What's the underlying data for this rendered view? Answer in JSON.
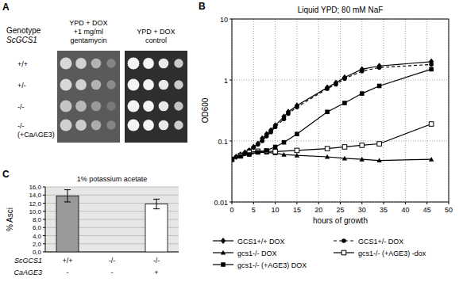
{
  "spot_assay": {
    "panel": "A",
    "genotype_label": "Genotype",
    "gene": "ScGCS1",
    "rows": [
      [
        "+/+"
      ],
      [
        "+/-"
      ],
      [
        "-/-"
      ],
      [
        "-/-",
        "(+CaAGE3)"
      ]
    ],
    "plates": [
      [
        "YPD + DOX",
        "+1 mg/ml",
        "gentamycin"
      ],
      [
        "YPD + DOX",
        "control"
      ]
    ]
  },
  "chart_data": [
    {
      "type": "line",
      "panel": "B",
      "title": "Liquid YPD; 80 mM NaF",
      "x_label": "hours of growth",
      "y_label": "OD600",
      "log": "y",
      "grid": true,
      "legend": "bottom",
      "xlim": [
        0,
        50
      ],
      "xticks": [
        0,
        5,
        10,
        15,
        20,
        25,
        30,
        35,
        40,
        45,
        50
      ],
      "ylim": [
        0.01,
        10
      ],
      "yticks": [
        0.01,
        0.1,
        1,
        10
      ],
      "series": [
        {
          "name": "GCS1+/+ DOX",
          "color": "#000000",
          "marker": "diamond",
          "line_style": "solid",
          "x": [
            0,
            1,
            2,
            3,
            4,
            5,
            6,
            7,
            8,
            9,
            10,
            12,
            13,
            15,
            22,
            24,
            26,
            30,
            34,
            46
          ],
          "values": [
            0.05,
            0.055,
            0.06,
            0.065,
            0.07,
            0.08,
            0.09,
            0.11,
            0.13,
            0.15,
            0.18,
            0.25,
            0.3,
            0.38,
            0.75,
            0.9,
            1.1,
            1.5,
            1.7,
            2.0
          ]
        },
        {
          "name": "GCS1+/- DOX",
          "color": "#000000",
          "marker": "circle",
          "line_style": "dashed",
          "x": [
            0,
            1,
            2,
            3,
            4,
            5,
            6,
            7,
            8,
            9,
            10,
            12,
            13,
            15,
            22,
            24,
            26,
            30,
            34,
            46
          ],
          "values": [
            0.05,
            0.055,
            0.058,
            0.063,
            0.07,
            0.078,
            0.088,
            0.1,
            0.12,
            0.14,
            0.17,
            0.23,
            0.28,
            0.36,
            0.72,
            0.85,
            1.05,
            1.4,
            1.6,
            1.8
          ]
        },
        {
          "name": "gcs1-/- DOX",
          "color": "#000000",
          "marker": "triangle",
          "line_style": "solid",
          "x": [
            0,
            2,
            4,
            6,
            8,
            10,
            12,
            15,
            22,
            26,
            30,
            34,
            46
          ],
          "values": [
            0.05,
            0.06,
            0.062,
            0.065,
            0.065,
            0.063,
            0.06,
            0.058,
            0.055,
            0.052,
            0.05,
            0.048,
            0.05
          ]
        },
        {
          "name": "gcs1-/- (+AGE3) -dox",
          "color": "#000000",
          "marker": "open_square",
          "line_style": "solid",
          "x": [
            0,
            2,
            4,
            6,
            8,
            10,
            15,
            22,
            26,
            30,
            34,
            46
          ],
          "values": [
            0.05,
            0.058,
            0.065,
            0.068,
            0.068,
            0.067,
            0.07,
            0.075,
            0.08,
            0.085,
            0.09,
            0.19
          ]
        },
        {
          "name": "gcs1-/- (+AGE3) DOX",
          "color": "#000000",
          "marker": "square",
          "line_style": "solid",
          "x": [
            0,
            2,
            4,
            6,
            8,
            10,
            12,
            15,
            22,
            26,
            30,
            34,
            46
          ],
          "values": [
            0.05,
            0.056,
            0.06,
            0.065,
            0.07,
            0.08,
            0.095,
            0.13,
            0.3,
            0.42,
            0.6,
            0.8,
            1.5
          ]
        }
      ]
    },
    {
      "type": "bar",
      "panel": "C",
      "title": "1% potassium acetate",
      "y_label": "% Asci",
      "grid": true,
      "categories": [
        "+/+",
        "-/-",
        "-/-"
      ],
      "x_label": "ScGCS1",
      "second_categories": {
        "label": "CaAGE3",
        "categories": [
          "-",
          "-",
          "+"
        ]
      },
      "values": [
        13.8,
        0,
        11.8
      ],
      "errors": [
        1.5,
        0,
        1.2
      ],
      "colors": [
        "#999999",
        "#999999",
        "#ffffff"
      ],
      "ylim": [
        0,
        16
      ],
      "yticks": [
        {
          "value": 0,
          "label": "0,0"
        },
        {
          "value": 2,
          "label": "2,0"
        },
        {
          "value": 4,
          "label": "4,0"
        },
        {
          "value": 6,
          "label": "6,0"
        },
        {
          "value": 8,
          "label": "8,0"
        },
        {
          "value": 10,
          "label": "10,0"
        },
        {
          "value": 12,
          "label": "12,0"
        },
        {
          "value": 14,
          "label": "14,0"
        },
        {
          "value": 16,
          "label": "16,0"
        }
      ]
    }
  ]
}
